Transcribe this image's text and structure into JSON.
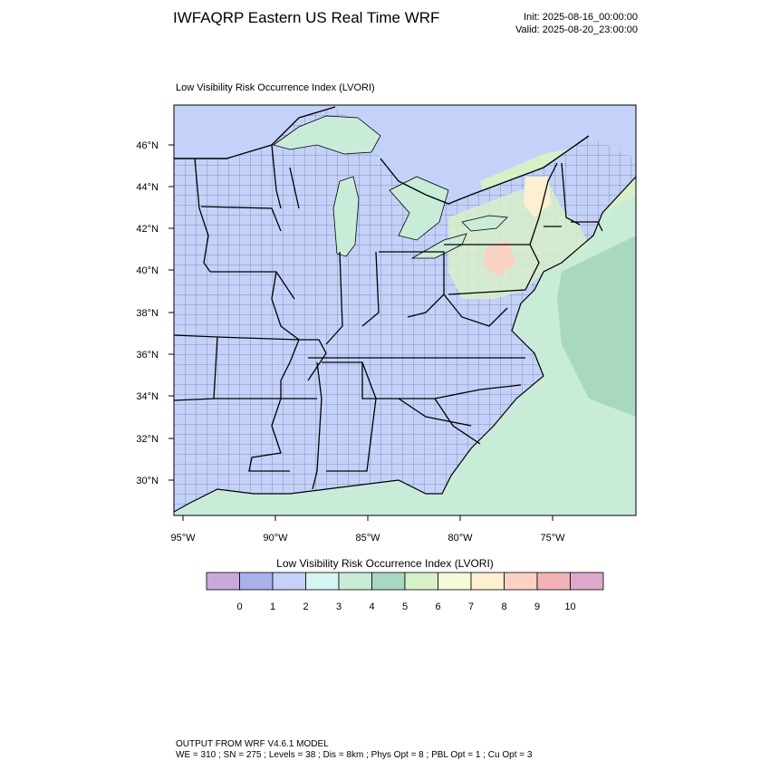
{
  "header": {
    "title": "IWFAQRP Eastern US Real Time WRF",
    "init": "Init: 2025-08-16_00:00:00",
    "valid": "Valid: 2025-08-20_23:00:00"
  },
  "map": {
    "field_title": "Low Visibility Risk Occurrence Index   (LVORI)",
    "lat_labels": [
      "46°N",
      "44°N",
      "42°N",
      "40°N",
      "38°N",
      "36°N",
      "34°N",
      "32°N",
      "30°N"
    ],
    "lon_labels": [
      "95°W",
      "90°W",
      "85°W",
      "80°W",
      "75°W"
    ]
  },
  "colorbar": {
    "title": "Low Visibility Risk Occurrence Index  (LVORI)",
    "labels": [
      "0",
      "1",
      "2",
      "3",
      "4",
      "5",
      "6",
      "7",
      "8",
      "9",
      "10"
    ],
    "colors": [
      "#c9a8dc",
      "#aab0ec",
      "#c4d2fa",
      "#d4f5f2",
      "#c8ecd8",
      "#a8d8c0",
      "#d8f0c8",
      "#f2fad8",
      "#fdf0d0",
      "#fad2c4",
      "#f2b2b4",
      "#dea8cc"
    ]
  },
  "footer": {
    "line1": "OUTPUT FROM WRF V4.6.1 MODEL",
    "line2": "WE = 310 ; SN = 275 ; Levels = 38 ; Dis = 8km ; Phys Opt = 8 ; PBL Opt = 1 ; Cu Opt = 3"
  }
}
